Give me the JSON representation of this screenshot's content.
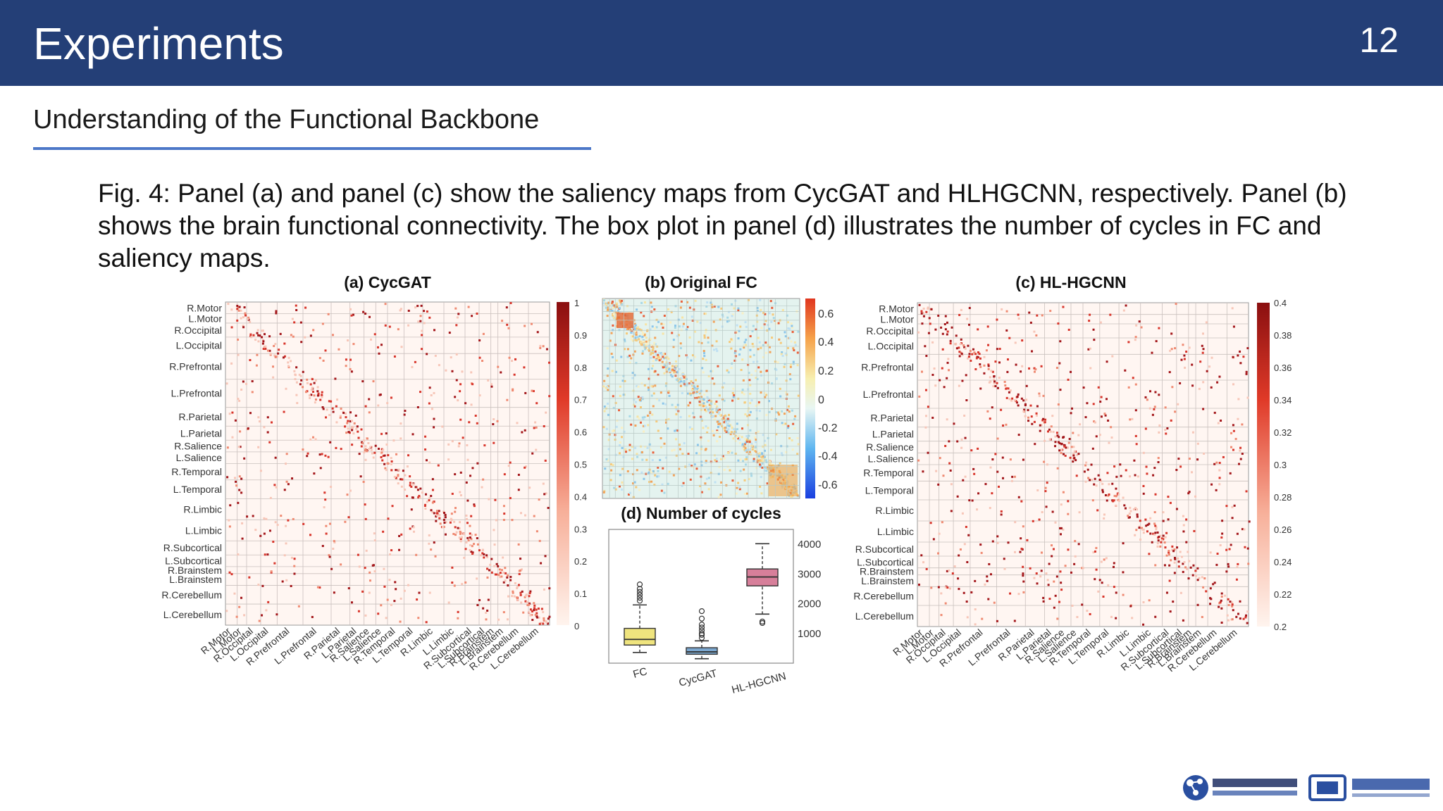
{
  "slide": {
    "title": "Experiments",
    "page_number": "12",
    "subtitle": "Understanding of the Functional Backbone",
    "caption": "Fig. 4: Panel (a) and panel (c) show the saliency maps from CycGAT and HLHGCNN, respectively. Panel (b) shows the brain functional connectivity. The box plot in panel (d) illustrates the number of cycles in FC and saliency maps."
  },
  "figure": {
    "panel_a_title": "(a) CycGAT",
    "panel_b_title": "(b) Original FC",
    "panel_c_title": "(c) HL-HGCNN",
    "panel_d_title": "(d) Number of cycles",
    "regions": [
      "R.Motor",
      "L.Motor",
      "R.Occipital",
      "L.Occipital",
      "R.Prefrontal",
      "L.Prefrontal",
      "R.Parietal",
      "L.Parietal",
      "R.Salience",
      "L.Salience",
      "R.Temporal",
      "L.Temporal",
      "R.Limbic",
      "L.Limbic",
      "R.Subcortical",
      "L.Subcortical",
      "R.Brainstem",
      "L.Brainstem",
      "R.Cerebellum",
      "L.Cerebellum"
    ],
    "colorbar_a_ticks": [
      "1",
      "0.9",
      "0.8",
      "0.7",
      "0.6",
      "0.5",
      "0.4",
      "0.3",
      "0.2",
      "0.1",
      "0"
    ],
    "colorbar_b_ticks": [
      "0.6",
      "0.4",
      "0.2",
      "0",
      "-0.2",
      "-0.4",
      "-0.6"
    ],
    "colorbar_c_ticks": [
      "0.4",
      "0.38",
      "0.36",
      "0.34",
      "0.32",
      "0.3",
      "0.28",
      "0.26",
      "0.24",
      "0.22",
      "0.2"
    ]
  },
  "chart_data": {
    "type": "box",
    "title": "(d) Number of cycles",
    "categories": [
      "FC",
      "CycGAT",
      "HL-HGCNN"
    ],
    "ylim": [
      0,
      4500
    ],
    "yticks": [
      1000,
      2000,
      3000,
      4000
    ],
    "yticks_labels": [
      "1000",
      "2000",
      "3000",
      "4000"
    ],
    "boxes": [
      {
        "name": "FC",
        "whisker_low": 360,
        "q1": 610,
        "median": 800,
        "q3": 1170,
        "whisker_high": 1960,
        "outliers": [
          2100,
          2200,
          2300,
          2400,
          2500,
          2650
        ],
        "color": "#efe47e"
      },
      {
        "name": "CycGAT",
        "whisker_low": 150,
        "q1": 300,
        "median": 380,
        "q3": 520,
        "whisker_high": 750,
        "outliers": [
          850,
          950,
          1000,
          1100,
          1200,
          1300,
          1500,
          1750
        ],
        "color": "#7ba7cf"
      },
      {
        "name": "HL-HGCNN",
        "whisker_low": 1650,
        "q1": 2600,
        "median": 2900,
        "q3": 3170,
        "whisker_high": 4020,
        "outliers": [
          1350,
          1400
        ],
        "color": "#d77f9a"
      }
    ]
  }
}
